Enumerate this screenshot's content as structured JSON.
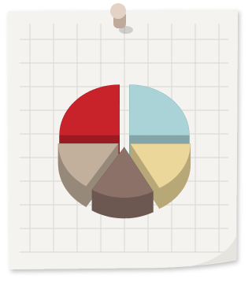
{
  "chart_data": {
    "type": "pie",
    "values": [
      25,
      17,
      17,
      16,
      25
    ],
    "colors": [
      "#a9d3d6",
      "#ecd79a",
      "#8b7168",
      "#c2b09c",
      "#c8232a"
    ]
  }
}
